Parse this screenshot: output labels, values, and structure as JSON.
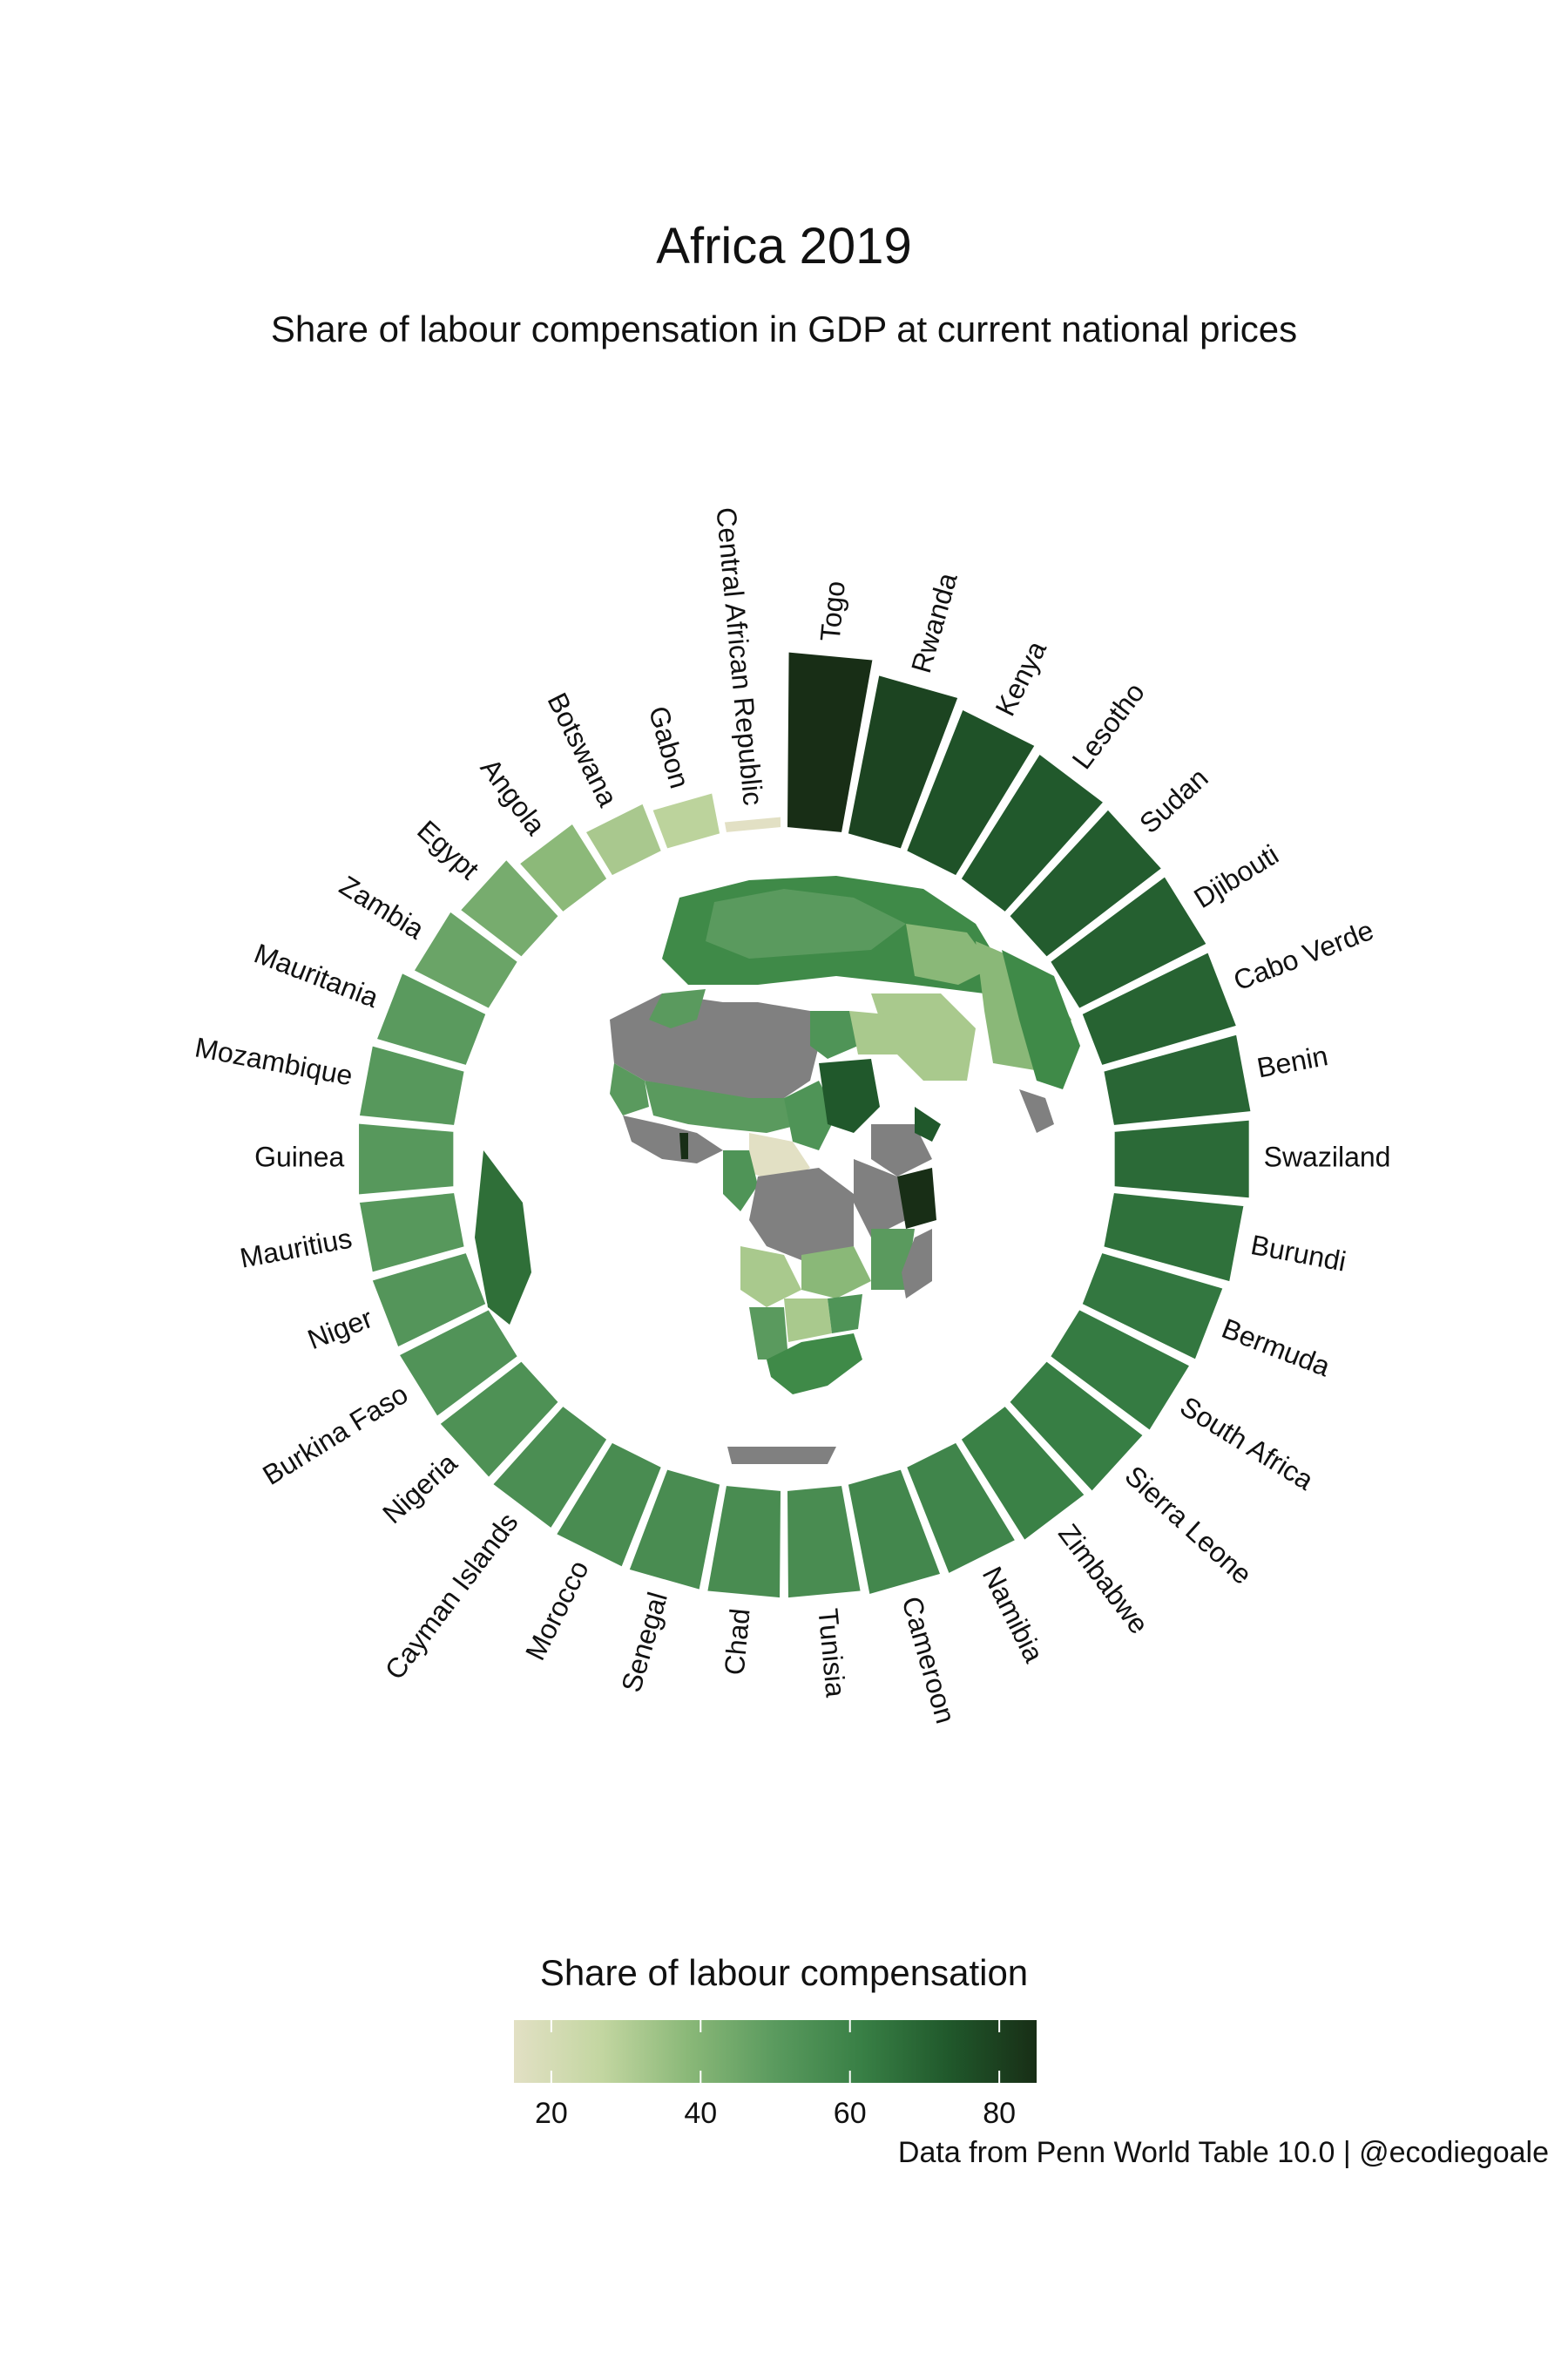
{
  "chart_data": {
    "type": "bar",
    "title": "Africa 2019",
    "subtitle": "Share of labour compensation in GDP at current national prices",
    "caption": "Data from Penn World Table 10.0 | @ecodiegoale",
    "categories": [
      "Togo",
      "Rwanda",
      "Kenya",
      "Lesotho",
      "Sudan",
      "Djibouti",
      "Cabo Verde",
      "Benin",
      "Swaziland",
      "Burundi",
      "Bermuda",
      "South Africa",
      "Sierra Leone",
      "Zimbabwe",
      "Namibia",
      "Cameroon",
      "Tunisia",
      "Chad",
      "Senegal",
      "Morocco",
      "Cayman Islands",
      "Nigeria",
      "Burkina Faso",
      "Niger",
      "Mauritius",
      "Guinea",
      "Mozambique",
      "Mauritania",
      "Zambia",
      "Egypt",
      "Angola",
      "Botswana",
      "Gabon",
      "Central African Republic"
    ],
    "values": [
      85,
      79,
      75,
      73,
      72,
      71,
      70,
      69,
      68,
      66,
      64,
      63,
      62,
      61,
      59,
      58,
      56,
      56,
      56,
      56,
      55,
      54,
      53,
      52,
      51,
      51,
      51,
      50,
      46,
      43,
      38,
      32,
      28,
      15
    ],
    "legend": {
      "title": "Share of labour compensation",
      "ticks": [
        "20",
        "40",
        "60",
        "80"
      ],
      "range": [
        15,
        85
      ],
      "colors": [
        "#e2e0c4",
        "#c3d6a1",
        "#8ab878",
        "#5a9a5e",
        "#387f45",
        "#20582b",
        "#182e16"
      ]
    }
  }
}
